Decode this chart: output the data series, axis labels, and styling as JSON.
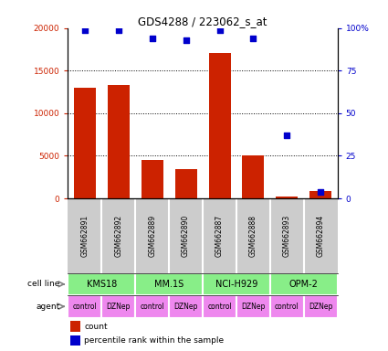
{
  "title": "GDS4288 / 223062_s_at",
  "samples": [
    "GSM662891",
    "GSM662892",
    "GSM662889",
    "GSM662890",
    "GSM662887",
    "GSM662888",
    "GSM662893",
    "GSM662894"
  ],
  "counts": [
    13000,
    13300,
    4500,
    3400,
    17100,
    5100,
    200,
    900
  ],
  "percentile_ranks": [
    99,
    99,
    94,
    93,
    99,
    94,
    37,
    4
  ],
  "cell_lines": [
    {
      "label": "KMS18",
      "start": 0,
      "end": 2
    },
    {
      "label": "MM.1S",
      "start": 2,
      "end": 4
    },
    {
      "label": "NCI-H929",
      "start": 4,
      "end": 6
    },
    {
      "label": "OPM-2",
      "start": 6,
      "end": 8
    }
  ],
  "agents": [
    "control",
    "DZNep",
    "control",
    "DZNep",
    "control",
    "DZNep",
    "control",
    "DZNep"
  ],
  "bar_color": "#cc2200",
  "dot_color": "#0000cc",
  "cell_line_color": "#88ee88",
  "agent_color": "#ee88ee",
  "label_bg_color": "#cccccc",
  "ylim_left": [
    0,
    20000
  ],
  "ylim_right": [
    0,
    100
  ],
  "yticks_left": [
    0,
    5000,
    10000,
    15000,
    20000
  ],
  "yticks_right": [
    0,
    25,
    50,
    75,
    100
  ],
  "yticklabels_left": [
    "0",
    "5000",
    "10000",
    "15000",
    "20000"
  ],
  "yticklabels_right": [
    "0",
    "25",
    "50",
    "75",
    "100%"
  ]
}
